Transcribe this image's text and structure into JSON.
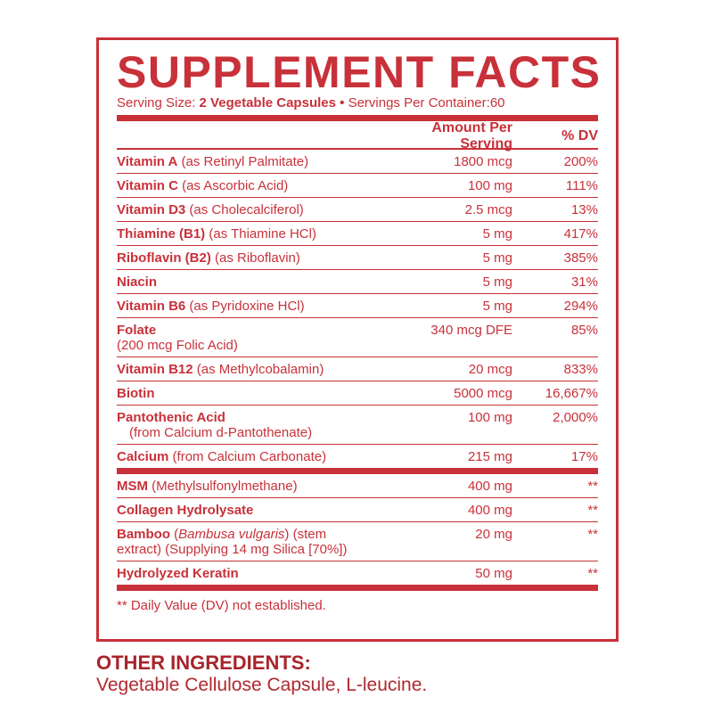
{
  "label": {
    "title": "SUPPLEMENT FACTS",
    "serving": {
      "size_label": "Serving Size:",
      "size_value": "2 Vegetable Capsules",
      "separator": "•",
      "per_container_label": "Servings Per Container:",
      "per_container_value": "60"
    },
    "header": {
      "amount": "Amount Per Serving",
      "dv": "% DV"
    },
    "groups": [
      {
        "rows": [
          {
            "name": "Vitamin A",
            "detail": "(as Retinyl Palmitate)",
            "amount": "1800 mcg",
            "dv": "200%"
          },
          {
            "name": "Vitamin C",
            "detail": "(as Ascorbic Acid)",
            "amount": "100 mg",
            "dv": "111%"
          },
          {
            "name": "Vitamin D3",
            "detail": "(as Cholecalciferol)",
            "amount": "2.5 mcg",
            "dv": "13%"
          },
          {
            "name": "Thiamine (B1)",
            "detail": "(as Thiamine HCl)",
            "amount": "5 mg",
            "dv": "417%"
          },
          {
            "name": "Riboflavin (B2)",
            "detail": "(as Riboflavin)",
            "amount": "5 mg",
            "dv": "385%"
          },
          {
            "name": "Niacin",
            "amount": "5 mg",
            "dv": "31%"
          },
          {
            "name": "Vitamin B6",
            "detail": "(as Pyridoxine HCl)",
            "amount": "5 mg",
            "dv": "294%"
          },
          {
            "name": "Folate",
            "detail": "(200 mcg Folic Acid)",
            "amount": "340 mcg DFE",
            "dv": "85%"
          },
          {
            "name": "Vitamin B12",
            "detail": "(as Methylcobalamin)",
            "amount": "20 mcg",
            "dv": "833%"
          },
          {
            "name": "Biotin",
            "amount": "5000 mcg",
            "dv": "16,667%"
          },
          {
            "name": "Pantothenic Acid",
            "detail": "(from Calcium d-Pantothenate)",
            "amount": "100 mg",
            "dv": "2,000%"
          },
          {
            "name": "Calcium",
            "detail": "(from Calcium Carbonate)",
            "amount": "215 mg",
            "dv": "17%"
          }
        ]
      },
      {
        "rows": [
          {
            "name": "MSM",
            "detail": "(Methylsulfonylmethane)",
            "amount": "400 mg",
            "dv": "**"
          },
          {
            "name": "Collagen Hydrolysate",
            "amount": "400 mg",
            "dv": "**"
          },
          {
            "name": "Bamboo",
            "detail": "(",
            "detail_italic": "Bambusa vulgaris",
            "detail_end": ") (stem extract) (Supplying 14 mg Silica [70%])",
            "amount": "20 mg",
            "dv": "**"
          },
          {
            "name": "Hydrolyzed Keratin",
            "amount": "50 mg",
            "dv": "**"
          }
        ]
      }
    ],
    "footnote": "** Daily Value (DV) not established."
  },
  "other_ingredients": {
    "title": "OTHER INGREDIENTS:",
    "text": "Vegetable Cellulose Capsule, L-leucine."
  }
}
